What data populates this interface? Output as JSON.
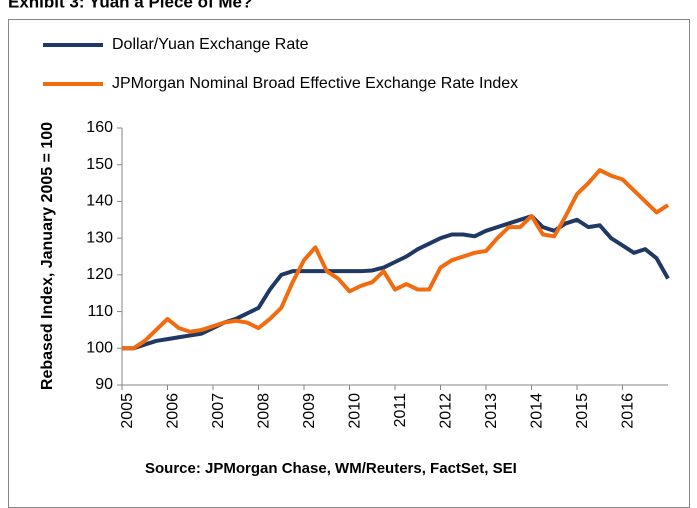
{
  "chart_data": {
    "type": "line",
    "title": "Exhibit 3: Yuan a Piece of Me?",
    "y_label": "Rebased Index, January 2005 = 100",
    "source": "Source: JPMorgan Chase, WM/Reuters, FactSet, SEI",
    "x": [
      2005,
      2005.25,
      2005.5,
      2005.75,
      2006,
      2006.25,
      2006.5,
      2006.75,
      2007,
      2007.25,
      2007.5,
      2007.75,
      2008,
      2008.25,
      2008.5,
      2008.75,
      2009,
      2009.25,
      2009.5,
      2009.75,
      2010,
      2010.25,
      2010.5,
      2010.75,
      2011,
      2011.25,
      2011.5,
      2011.75,
      2012,
      2012.25,
      2012.5,
      2012.75,
      2013,
      2013.25,
      2013.5,
      2013.75,
      2014,
      2014.25,
      2014.5,
      2014.75,
      2015,
      2015.25,
      2015.5,
      2015.75,
      2016,
      2016.25,
      2016.5,
      2016.75,
      2017
    ],
    "series": [
      {
        "name": "Dollar/Yuan Exchange Rate",
        "color": "#1f3864",
        "values": [
          100,
          100,
          101,
          102,
          102.5,
          103,
          103.5,
          104,
          105.5,
          107,
          108,
          109.5,
          111,
          116,
          120,
          121,
          121,
          121,
          121,
          121,
          121,
          121,
          121.2,
          122,
          123.5,
          125,
          127,
          128.5,
          130,
          131,
          131,
          130.5,
          132,
          133,
          134,
          135,
          136,
          133,
          132,
          134,
          135,
          133,
          133.5,
          130,
          128,
          126,
          127,
          124.5,
          119
        ]
      },
      {
        "name": "JPMorgan Nominal Broad Effective Exchange Rate Index",
        "color": "#f26b0f",
        "values": [
          100,
          100,
          102,
          105,
          108,
          105.5,
          104.5,
          105,
          106,
          107,
          107.5,
          107,
          105.5,
          108,
          111,
          118,
          124,
          127.5,
          121,
          119,
          115.5,
          117,
          118,
          121,
          116,
          117.5,
          116,
          116,
          122,
          124,
          125,
          126,
          126.5,
          130,
          133,
          133,
          136,
          131,
          130.5,
          136,
          142,
          145,
          148.5,
          147,
          146,
          143,
          140,
          137,
          139
        ]
      }
    ],
    "xlim": [
      2005,
      2017
    ],
    "xticks": [
      2005,
      2006,
      2007,
      2008,
      2009,
      2010,
      2011,
      2012,
      2013,
      2014,
      2015,
      2016
    ],
    "ylim": [
      90,
      160
    ],
    "yticks": [
      90,
      100,
      110,
      120,
      130,
      140,
      150,
      160
    ],
    "grid": false,
    "legend": "top"
  }
}
